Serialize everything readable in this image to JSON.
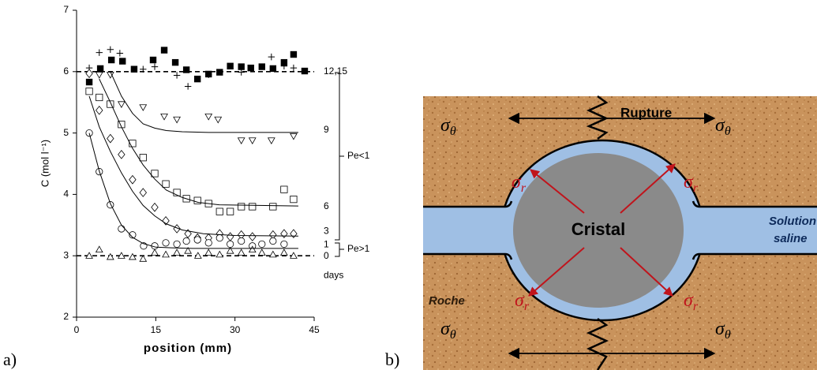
{
  "chart_data": {
    "type": "scatter",
    "xlabel": "position (mm)",
    "ylabel": "C (mol l⁻¹)",
    "xlim": [
      0,
      45
    ],
    "xticks": [
      0,
      15,
      30,
      45
    ],
    "ylim": [
      2,
      7
    ],
    "yticks": [
      2,
      3,
      4,
      5,
      6,
      7
    ],
    "hlines": [
      6,
      3
    ],
    "series": [
      {
        "marker": "filled-square",
        "color": "#000000",
        "x": [
          2.4,
          4.5,
          6.6,
          8.7,
          10.9,
          14.5,
          16.6,
          18.7,
          20.8,
          22.9,
          25,
          27.1,
          29.1,
          31.2,
          33,
          35.1,
          37.2,
          39.3,
          41.1,
          43.2
        ],
        "values": [
          5.83,
          6.05,
          6.19,
          6.17,
          6.04,
          6.19,
          6.35,
          6.15,
          6.03,
          5.88,
          5.96,
          5.99,
          6.09,
          6.08,
          6.06,
          6.08,
          6.05,
          6.15,
          6.28,
          6.01
        ]
      },
      {
        "marker": "plus",
        "color": "#000000",
        "x": [
          2.4,
          4.3,
          6.4,
          8.2,
          12.6,
          14.8,
          19,
          21.1,
          25,
          31.2,
          36.9,
          39.3,
          41.1
        ],
        "values": [
          6.06,
          6.31,
          6.36,
          6.3,
          6.04,
          6.08,
          5.94,
          5.76,
          5.95,
          5.99,
          6.24,
          6.09,
          6.06
        ]
      },
      {
        "marker": "triangle-down",
        "color": "#000000",
        "x": [
          4.3,
          6.4,
          8.5,
          12.6,
          16.6,
          19,
          25,
          26.8,
          31.2,
          33.3,
          36.9,
          41.1
        ],
        "values": [
          5.95,
          5.95,
          5.47,
          5.42,
          5.27,
          5.22,
          5.27,
          5.22,
          4.88,
          4.88,
          4.88,
          4.95
        ]
      },
      {
        "marker": "square",
        "color": "#000000",
        "x": [
          2.4,
          4.3,
          6.4,
          8.5,
          10.6,
          12.6,
          14.8,
          16.9,
          19,
          20.8,
          22.9,
          25,
          27.1,
          29.1,
          31.2,
          33.3,
          37.2,
          39.3,
          41.1
        ],
        "values": [
          5.68,
          5.58,
          5.47,
          5.14,
          4.83,
          4.6,
          4.34,
          4.17,
          4.03,
          3.93,
          3.9,
          3.85,
          3.72,
          3.72,
          3.8,
          3.8,
          3.8,
          4.08,
          3.92
        ]
      },
      {
        "marker": "diamond",
        "color": "#000000",
        "x": [
          2.4,
          4.3,
          6.4,
          8.5,
          10.6,
          12.6,
          14.8,
          16.9,
          19,
          21.1,
          22.9,
          25,
          27.1,
          29.1,
          31.2,
          33.3,
          37.2,
          39.3,
          41.1
        ],
        "values": [
          5.97,
          5.37,
          4.91,
          4.65,
          4.24,
          4.03,
          3.79,
          3.57,
          3.44,
          3.36,
          3.29,
          3.29,
          3.36,
          3.31,
          3.34,
          3.31,
          3.34,
          3.36,
          3.36
        ]
      },
      {
        "marker": "circle",
        "color": "#000000",
        "x": [
          2.4,
          4.3,
          6.4,
          8.5,
          10.6,
          12.7,
          14.8,
          16.9,
          19,
          20.8,
          22.9,
          25,
          27.1,
          29.1,
          31.2,
          33.3,
          35.1,
          37.2,
          39.3
        ],
        "values": [
          5.0,
          4.37,
          3.83,
          3.44,
          3.34,
          3.16,
          3.16,
          3.21,
          3.19,
          3.24,
          3.26,
          3.21,
          3.29,
          3.19,
          3.24,
          3.16,
          3.19,
          3.24,
          3.19
        ]
      },
      {
        "marker": "triangle-up",
        "color": "#000000",
        "x": [
          2.4,
          4.3,
          6.4,
          8.5,
          10.6,
          12.6,
          14.8,
          16.9,
          19,
          21.1,
          23,
          25,
          27.1,
          29.1,
          31.2,
          33.3,
          35.1,
          37.2,
          39.3,
          41.1
        ],
        "values": [
          3.0,
          3.1,
          2.98,
          3.0,
          2.98,
          2.95,
          3.05,
          3.02,
          3.05,
          3.08,
          3.0,
          3.05,
          3.02,
          3.08,
          3.05,
          3.1,
          3.05,
          3.02,
          3.05,
          3.0
        ]
      },
      {
        "marker": "line",
        "color": "#000000",
        "x": [
          6.4,
          8.5,
          10.6,
          12.6,
          14.8,
          17,
          20,
          25,
          42
        ],
        "values": [
          6.0,
          5.6,
          5.32,
          5.15,
          5.08,
          5.04,
          5.02,
          5.01,
          5.01
        ]
      },
      {
        "marker": "line",
        "color": "#000000",
        "x": [
          4.3,
          6.4,
          8.5,
          10.6,
          12.6,
          14.8,
          17,
          20,
          23,
          27,
          42
        ],
        "values": [
          5.88,
          5.5,
          5.1,
          4.75,
          4.48,
          4.25,
          4.07,
          3.95,
          3.87,
          3.83,
          3.81
        ]
      },
      {
        "marker": "line",
        "color": "#000000",
        "x": [
          2.4,
          4.3,
          6.4,
          8.5,
          10.6,
          12.6,
          14.8,
          17,
          20,
          24,
          30,
          42
        ],
        "values": [
          5.6,
          5.1,
          4.7,
          4.35,
          4.05,
          3.82,
          3.65,
          3.52,
          3.42,
          3.36,
          3.33,
          3.32
        ]
      },
      {
        "marker": "line",
        "color": "#000000",
        "x": [
          2.4,
          4.3,
          6.4,
          8.5,
          10.6,
          12.6,
          15,
          18,
          22,
          42
        ],
        "values": [
          5.0,
          4.38,
          3.85,
          3.5,
          3.3,
          3.2,
          3.14,
          3.13,
          3.12,
          3.12
        ]
      }
    ],
    "annotations": [
      {
        "text": "12,15",
        "y": 6.0
      },
      {
        "text": "9",
        "y": 5.05
      },
      {
        "text": "6",
        "y": 3.8
      },
      {
        "text": "3",
        "y": 3.4
      },
      {
        "text": "1",
        "y": 3.18
      },
      {
        "text": "0",
        "y": 2.99
      },
      {
        "text": "days",
        "y": 2.68
      }
    ],
    "brackets": [
      "Pe<1",
      "Pe>1"
    ],
    "panel_label": "a)"
  },
  "diagram": {
    "panel_label": "b)",
    "rupture": "Rupture",
    "cristal": "Cristal",
    "solution": [
      "Solution",
      "saline"
    ],
    "roche": "Roche",
    "stress_labels": [
      {
        "symbol": "σ",
        "subscript": "θ"
      },
      {
        "symbol": "σ",
        "subscript": "θ"
      },
      {
        "symbol": "σ",
        "subscript": "θ"
      },
      {
        "symbol": "σ",
        "subscript": "θ"
      },
      {
        "symbol": "σ",
        "subscript": "r"
      },
      {
        "symbol": "σ",
        "subscript": "r"
      },
      {
        "symbol": "σ",
        "subscript": "r"
      },
      {
        "symbol": "σ",
        "subscript": "r"
      }
    ]
  }
}
